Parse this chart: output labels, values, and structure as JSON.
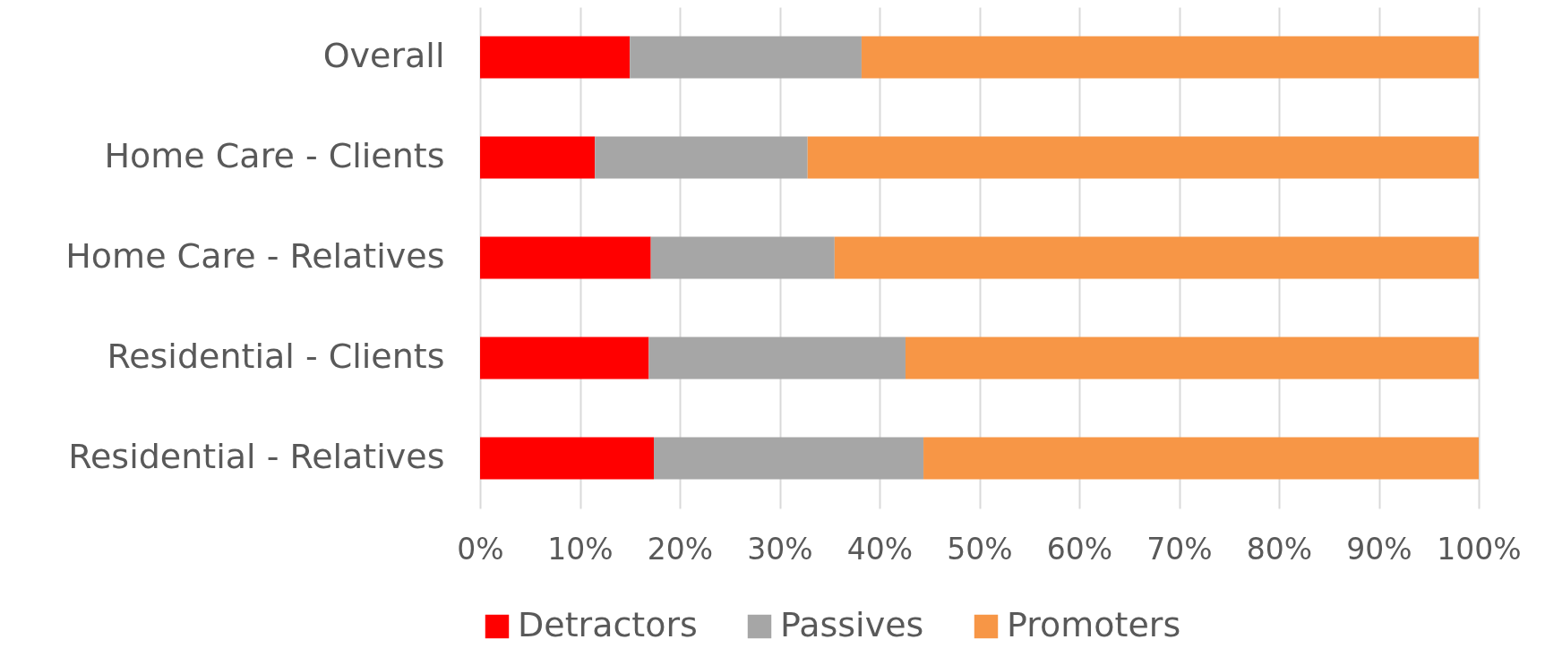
{
  "chart_data": {
    "type": "bar",
    "orientation": "horizontal",
    "stacked": true,
    "categories": [
      "Overall",
      "Home Care - Clients",
      "Home Care - Relatives",
      "Residential - Clients",
      "Residential - Relatives"
    ],
    "series": [
      {
        "name": "Detractors",
        "color": "#ff0000",
        "values": [
          15,
          11.5,
          17.1,
          16.9,
          17.4
        ]
      },
      {
        "name": "Passives",
        "color": "#a6a6a6",
        "values": [
          23.2,
          21.3,
          18.4,
          25.7,
          27.0
        ]
      },
      {
        "name": "Promoters",
        "color": "#f79646",
        "values": [
          61.8,
          67.2,
          64.5,
          57.4,
          55.6
        ]
      }
    ],
    "xlim": [
      0,
      100
    ],
    "xticks": [
      {
        "value": 0,
        "label": "0%"
      },
      {
        "value": 10,
        "label": "10%"
      },
      {
        "value": 20,
        "label": "20%"
      },
      {
        "value": 30,
        "label": "30%"
      },
      {
        "value": 40,
        "label": "40%"
      },
      {
        "value": 50,
        "label": "50%"
      },
      {
        "value": 60,
        "label": "60%"
      },
      {
        "value": 70,
        "label": "70%"
      },
      {
        "value": 80,
        "label": "80%"
      },
      {
        "value": 90,
        "label": "90%"
      },
      {
        "value": 100,
        "label": "100%"
      }
    ],
    "grid": "x",
    "legend": "bottom"
  }
}
